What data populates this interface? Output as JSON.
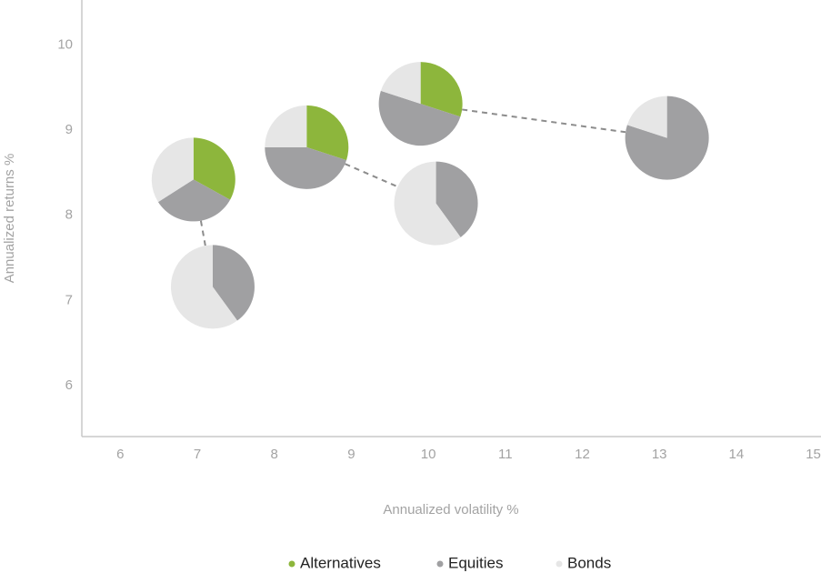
{
  "chart_data": {
    "type": "scatter-pie",
    "xlabel": "Annualized volatility %",
    "ylabel": "Annualized returns %",
    "xlim": [
      5.5,
      15.1
    ],
    "ylim": [
      5.4,
      10.53
    ],
    "xticks": [
      6,
      7,
      8,
      9,
      10,
      11,
      12,
      13,
      14,
      15
    ],
    "yticks": [
      6,
      7,
      8,
      9,
      10
    ],
    "series": [
      {
        "name": "Alternatives",
        "color": "#8db63c"
      },
      {
        "name": "Equities",
        "color": "#a0a0a2"
      },
      {
        "name": "Bonds",
        "color": "#e6e6e6"
      }
    ],
    "points": [
      {
        "x": 6.95,
        "y": 8.42,
        "values": [
          33,
          33,
          34
        ]
      },
      {
        "x": 7.2,
        "y": 7.16,
        "values": [
          0,
          40,
          60
        ]
      },
      {
        "x": 8.42,
        "y": 8.8,
        "values": [
          30,
          45,
          25
        ]
      },
      {
        "x": 10.1,
        "y": 8.14,
        "values": [
          0,
          40,
          60
        ]
      },
      {
        "x": 9.9,
        "y": 9.31,
        "values": [
          30,
          50,
          20
        ]
      },
      {
        "x": 13.1,
        "y": 8.91,
        "values": [
          0,
          80,
          20
        ]
      }
    ]
  }
}
